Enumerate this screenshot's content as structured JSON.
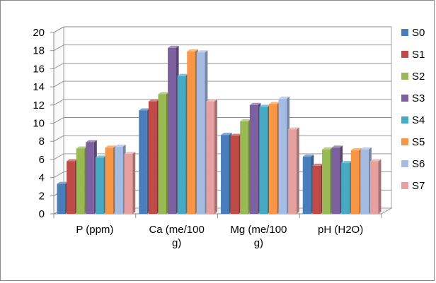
{
  "chart_data": {
    "type": "bar",
    "style": "3d-clustered-column",
    "categories": [
      [
        "P (ppm)"
      ],
      [
        "Ca (me/100",
        "g)"
      ],
      [
        "Mg (me/100",
        "g)"
      ],
      [
        "pH (H2O)"
      ]
    ],
    "series": [
      {
        "name": "S0",
        "color": "#4a7ebb",
        "values": [
          3.3,
          11.4,
          8.7,
          6.3
        ]
      },
      {
        "name": "S1",
        "color": "#be4b48",
        "values": [
          5.8,
          12.4,
          8.6,
          5.3
        ]
      },
      {
        "name": "S2",
        "color": "#98b954",
        "values": [
          7.2,
          13.2,
          10.2,
          7.1
        ]
      },
      {
        "name": "S3",
        "color": "#7d60a0",
        "values": [
          7.9,
          18.3,
          12.0,
          7.3
        ]
      },
      {
        "name": "S4",
        "color": "#46aac5",
        "values": [
          6.2,
          15.2,
          11.8,
          5.6
        ]
      },
      {
        "name": "S5",
        "color": "#f79646",
        "values": [
          7.3,
          17.9,
          12.1,
          7.0
        ]
      },
      {
        "name": "S6",
        "color": "#a5bbe2",
        "values": [
          7.4,
          17.8,
          12.7,
          7.1
        ]
      },
      {
        "name": "S7",
        "color": "#e6a0a0",
        "values": [
          6.6,
          12.4,
          9.3,
          5.8
        ]
      }
    ],
    "ylim": [
      0,
      20
    ],
    "yticks": [
      "0",
      "2",
      "4",
      "6",
      "8",
      "10",
      "12",
      "14",
      "16",
      "18",
      "20"
    ],
    "grid": true,
    "legend_position": "right"
  }
}
